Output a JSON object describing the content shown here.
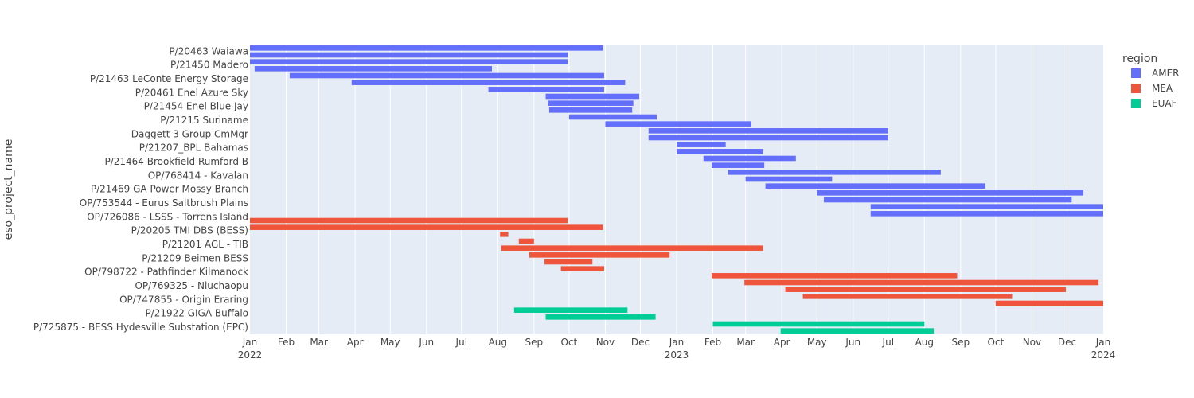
{
  "chart_data": {
    "type": "timeline",
    "ylabel": "eso_project_name",
    "legend_title": "region",
    "legend_position": "right",
    "grid": true,
    "colors": {
      "AMER": "#636efa",
      "MEA": "#ef553b",
      "EUAF": "#00cc96"
    },
    "legend": [
      "AMER",
      "MEA",
      "EUAF"
    ],
    "xlim": [
      "2022-01-01",
      "2024-01-01"
    ],
    "x_ticks": [
      {
        "date": "2022-01-01",
        "label": "Jan",
        "year": "2022"
      },
      {
        "date": "2022-02-01",
        "label": "Feb"
      },
      {
        "date": "2022-03-01",
        "label": "Mar"
      },
      {
        "date": "2022-04-01",
        "label": "Apr"
      },
      {
        "date": "2022-05-01",
        "label": "May"
      },
      {
        "date": "2022-06-01",
        "label": "Jun"
      },
      {
        "date": "2022-07-01",
        "label": "Jul"
      },
      {
        "date": "2022-08-01",
        "label": "Aug"
      },
      {
        "date": "2022-09-01",
        "label": "Sep"
      },
      {
        "date": "2022-10-01",
        "label": "Oct"
      },
      {
        "date": "2022-11-01",
        "label": "Nov"
      },
      {
        "date": "2022-12-01",
        "label": "Dec"
      },
      {
        "date": "2023-01-01",
        "label": "Jan",
        "year": "2023"
      },
      {
        "date": "2023-02-01",
        "label": "Feb"
      },
      {
        "date": "2023-03-01",
        "label": "Mar"
      },
      {
        "date": "2023-04-01",
        "label": "Apr"
      },
      {
        "date": "2023-05-01",
        "label": "May"
      },
      {
        "date": "2023-06-01",
        "label": "Jun"
      },
      {
        "date": "2023-07-01",
        "label": "Jul"
      },
      {
        "date": "2023-08-01",
        "label": "Aug"
      },
      {
        "date": "2023-09-01",
        "label": "Sep"
      },
      {
        "date": "2023-10-01",
        "label": "Oct"
      },
      {
        "date": "2023-11-01",
        "label": "Nov"
      },
      {
        "date": "2023-12-01",
        "label": "Dec"
      },
      {
        "date": "2024-01-01",
        "label": "Jan",
        "year": "2024"
      }
    ],
    "y_labels": [
      "P/20463 Waiawa",
      "P/21450 Madero",
      "P/21463 LeConte Energy Storage",
      "P/20461 Enel Azure Sky",
      "P/21454 Enel Blue Jay",
      "P/21215 Suriname",
      "Daggett 3 Group CmMgr",
      "P/21207_BPL Bahamas",
      "P/21464 Brookfield Rumford B",
      "OP/768414 - Kavalan",
      "P/21469 GA Power Mossy Branch",
      "OP/753544 - Eurus Saltbrush Plains",
      "OP/726086 - LSSS - Torrens Island",
      "P/20205 TMI DBS (BESS)",
      "P/21201 AGL - TIB",
      "P/21209 Beimen BESS",
      "OP/798722 - Pathfinder Kilmanock",
      "OP/769325 - Niuchaopu",
      "OP/747855 - Origin Eraring",
      "P/21922 GIGA Buffalo",
      "P/725875 - BESS Hydesville Substation (EPC)"
    ],
    "tasks": [
      {
        "region": "AMER",
        "start": "2022-01-01",
        "end": "2022-10-30"
      },
      {
        "region": "AMER",
        "start": "2022-01-01",
        "end": "2022-09-30"
      },
      {
        "region": "AMER",
        "start": "2022-01-01",
        "end": "2022-09-30"
      },
      {
        "region": "AMER",
        "start": "2022-01-05",
        "end": "2022-07-27"
      },
      {
        "region": "AMER",
        "start": "2022-02-04",
        "end": "2022-10-31"
      },
      {
        "region": "AMER",
        "start": "2022-03-29",
        "end": "2022-11-18"
      },
      {
        "region": "AMER",
        "start": "2022-07-24",
        "end": "2022-10-31"
      },
      {
        "region": "AMER",
        "start": "2022-09-11",
        "end": "2022-11-30"
      },
      {
        "region": "AMER",
        "start": "2022-09-13",
        "end": "2022-11-25"
      },
      {
        "region": "AMER",
        "start": "2022-09-14",
        "end": "2022-11-24"
      },
      {
        "region": "AMER",
        "start": "2022-10-01",
        "end": "2022-12-15"
      },
      {
        "region": "AMER",
        "start": "2022-11-01",
        "end": "2023-03-06"
      },
      {
        "region": "AMER",
        "start": "2022-12-08",
        "end": "2023-07-01"
      },
      {
        "region": "AMER",
        "start": "2022-12-08",
        "end": "2023-07-01"
      },
      {
        "region": "AMER",
        "start": "2023-01-01",
        "end": "2023-02-12"
      },
      {
        "region": "AMER",
        "start": "2023-01-01",
        "end": "2023-03-16"
      },
      {
        "region": "AMER",
        "start": "2023-01-24",
        "end": "2023-04-13"
      },
      {
        "region": "AMER",
        "start": "2023-01-31",
        "end": "2023-03-17"
      },
      {
        "region": "AMER",
        "start": "2023-02-14",
        "end": "2023-08-15"
      },
      {
        "region": "AMER",
        "start": "2023-03-01",
        "end": "2023-05-14"
      },
      {
        "region": "AMER",
        "start": "2023-03-18",
        "end": "2023-09-22"
      },
      {
        "region": "AMER",
        "start": "2023-05-01",
        "end": "2023-12-15"
      },
      {
        "region": "AMER",
        "start": "2023-05-07",
        "end": "2023-12-05"
      },
      {
        "region": "AMER",
        "start": "2023-06-16",
        "end": "2024-01-01"
      },
      {
        "region": "AMER",
        "start": "2023-06-16",
        "end": "2024-01-01"
      },
      {
        "region": "MEA",
        "start": "2022-01-01",
        "end": "2022-09-30"
      },
      {
        "region": "MEA",
        "start": "2022-01-01",
        "end": "2022-10-30"
      },
      {
        "region": "MEA",
        "start": "2022-08-03",
        "end": "2022-08-10"
      },
      {
        "region": "MEA",
        "start": "2022-08-19",
        "end": "2022-09-01"
      },
      {
        "region": "MEA",
        "start": "2022-08-04",
        "end": "2023-03-16"
      },
      {
        "region": "MEA",
        "start": "2022-08-28",
        "end": "2022-12-26"
      },
      {
        "region": "MEA",
        "start": "2022-09-10",
        "end": "2022-10-21"
      },
      {
        "region": "MEA",
        "start": "2022-09-24",
        "end": "2022-10-31"
      },
      {
        "region": "MEA",
        "start": "2023-01-31",
        "end": "2023-08-29"
      },
      {
        "region": "MEA",
        "start": "2023-02-28",
        "end": "2023-12-28"
      },
      {
        "region": "MEA",
        "start": "2023-04-04",
        "end": "2023-11-30"
      },
      {
        "region": "MEA",
        "start": "2023-04-19",
        "end": "2023-10-15"
      },
      {
        "region": "MEA",
        "start": "2023-10-01",
        "end": "2024-01-01"
      },
      {
        "region": "EUAF",
        "start": "2022-08-15",
        "end": "2022-11-20"
      },
      {
        "region": "EUAF",
        "start": "2022-09-11",
        "end": "2022-12-14"
      },
      {
        "region": "EUAF",
        "start": "2023-02-01",
        "end": "2023-08-01"
      },
      {
        "region": "EUAF",
        "start": "2023-03-31",
        "end": "2023-08-09"
      }
    ]
  }
}
